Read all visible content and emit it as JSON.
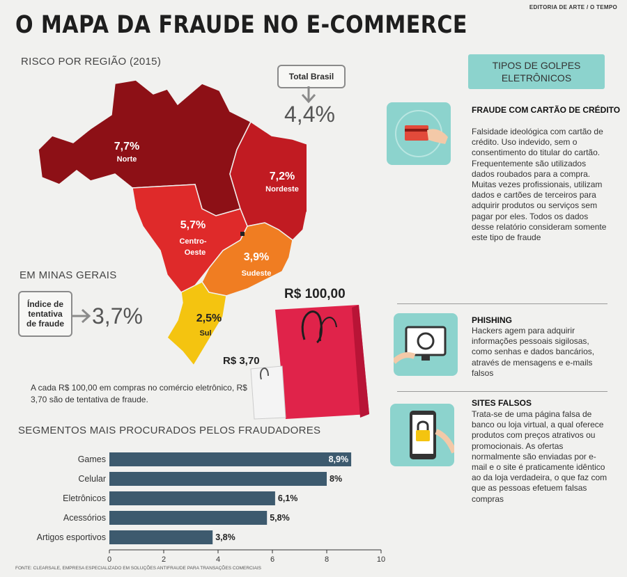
{
  "credit": "EDITORIA DE ARTE / O TEMPO",
  "title": "O MAPA DA FRAUDE NO E-COMMERCE",
  "map": {
    "subtitle": "RISCO POR REGIÃO (2015)",
    "regions": [
      {
        "name": "Norte",
        "value": "7,7%",
        "color": "#8d1016"
      },
      {
        "name": "Nordeste",
        "value": "7,2%",
        "color": "#c11b22"
      },
      {
        "name": "Centro-Oeste",
        "value": "5,7%",
        "color": "#df2a2a"
      },
      {
        "name": "Sudeste",
        "value": "3,9%",
        "color": "#f07d22"
      },
      {
        "name": "Sul",
        "value": "2,5%",
        "color": "#f4c410"
      }
    ],
    "total_label": "Total Brasil",
    "total_value": "4,4%"
  },
  "minas": {
    "title": "EM MINAS GERAIS",
    "box_label": "Índice de tentativa de fraude",
    "value": "3,7%"
  },
  "bags": {
    "big_label": "R$ 100,00",
    "small_label": "R$ 3,70",
    "note": "A cada R$ 100,00 em compras no comércio eletrônico, R$ 3,70 são de tentativa de fraude."
  },
  "segments_title": "SEGMENTOS MAIS PROCURADOS PELOS FRAUDADORES",
  "chart_data": {
    "type": "bar",
    "orientation": "horizontal",
    "categories": [
      "Games",
      "Celular",
      "Eletrônicos",
      "Acessórios",
      "Artigos esportivos"
    ],
    "values": [
      8.9,
      8,
      6.1,
      5.8,
      3.8
    ],
    "value_labels": [
      "8,9%",
      "8%",
      "6,1%",
      "5,8%",
      "3,8%"
    ],
    "xlim": [
      0,
      10
    ],
    "xticks": [
      0,
      2,
      4,
      6,
      8,
      10
    ],
    "bar_color": "#3d5a6e",
    "grid": false
  },
  "source": "FONTE: CLEARSALE, EMPRESA ESPECIALIZADO EM SOLUÇÕES ANTIFRAUDE PARA TRANSAÇÕES COMERCIAIS",
  "types": {
    "banner": "TIPOS DE GOLPES ELETRÔNICOS",
    "items": [
      {
        "title": "FRAUDE COM CARTÃO DE CRÉDITO",
        "icon": "credit-card-icon",
        "text": "Falsidade ideológica com cartão de crédito. Uso indevido, sem o consentimento do titular do cartão. Frequentemente são utilizados dados roubados para a compra. Muitas vezes profissionais, utilizam dados e cartões de terceiros para adquirir produtos ou serviços sem pagar por eles. Todos os dados desse relatório consideram somente este tipo de fraude"
      },
      {
        "title": "PHISHING",
        "icon": "magnifier-monitor-icon",
        "text": "Hackers agem para adquirir informações pessoais sigilosas, como senhas e dados bancários, através de mensagens e e-mails falsos"
      },
      {
        "title": "SITES FALSOS",
        "icon": "padlock-phone-icon",
        "text": "Trata-se de uma página falsa de banco ou loja virtual, a qual oferece produtos com preços atrativos ou promocionais. As ofertas normalmente são enviadas por e-mail e o site é praticamente idêntico ao da loja verdadeira, o que faz com que as pessoas efetuem falsas compras"
      }
    ]
  },
  "colors": {
    "accent_teal": "#8cd3cd",
    "bag_red": "#e0234a",
    "bar": "#3d5a6e"
  }
}
